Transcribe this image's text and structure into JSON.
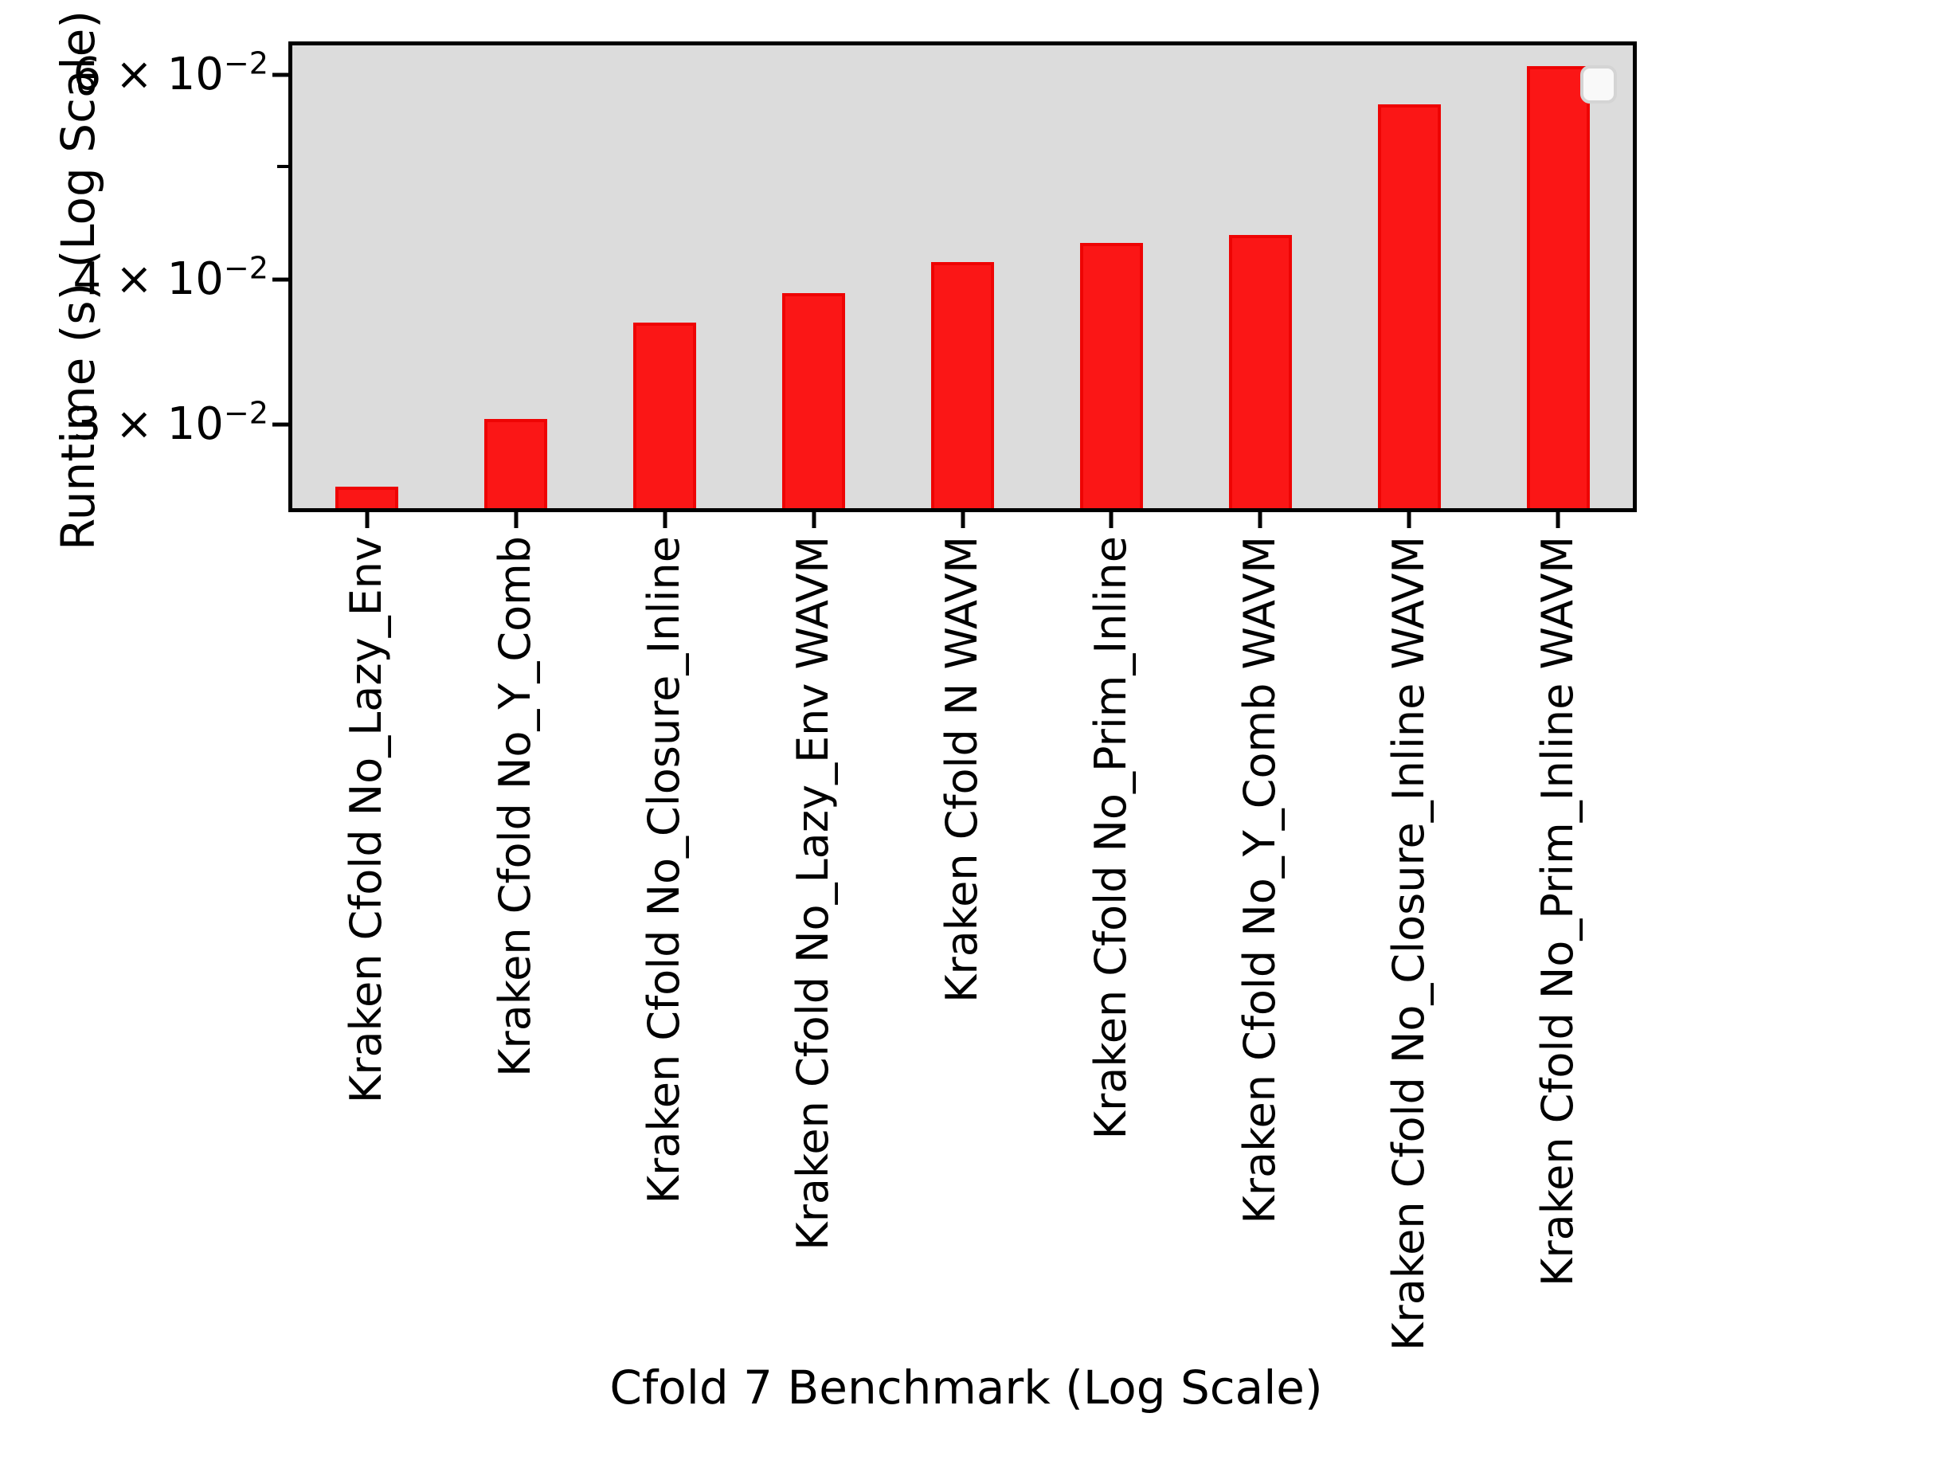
{
  "chart_data": {
    "type": "bar",
    "title": "",
    "xlabel": "Cfold 7 Benchmark (Log Scale)",
    "ylabel": "Runtime (s) (Log Scale)",
    "yscale": "log",
    "ylim": [
      0.0254,
      0.0636
    ],
    "grid": false,
    "plot_bg_color": "#dcdcdc",
    "bar_fill_color": "#fb1616",
    "bar_edge_color": "#ee0404",
    "categories": [
      "Kraken Cfold No_Lazy_Env",
      "Kraken Cfold No_Y_Comb",
      "Kraken Cfold No_Closure_Inline",
      "Kraken Cfold No_Lazy_Env WAVM",
      "Kraken Cfold N WAVM",
      "Kraken Cfold No_Prim_Inline",
      "Kraken Cfold No_Y_Comb WAVM",
      "Kraken Cfold No_Closure_Inline WAVM",
      "Kraken Cfold No_Prim_Inline WAVM"
    ],
    "values": [
      0.0265,
      0.0303,
      0.0367,
      0.0389,
      0.0414,
      0.043,
      0.0437,
      0.0566,
      0.061
    ],
    "y_ticks": [
      {
        "value": 0.06,
        "labeled": true,
        "major": true,
        "mantissa": "6 × 10",
        "exponent": "−2"
      },
      {
        "value": 0.05,
        "labeled": false,
        "major": false,
        "mantissa": "",
        "exponent": ""
      },
      {
        "value": 0.04,
        "labeled": true,
        "major": true,
        "mantissa": "4 × 10",
        "exponent": "−2"
      },
      {
        "value": 0.03,
        "labeled": true,
        "major": true,
        "mantissa": "3 × 10",
        "exponent": "−2"
      }
    ],
    "legend": {
      "visible": true,
      "entries": []
    }
  }
}
